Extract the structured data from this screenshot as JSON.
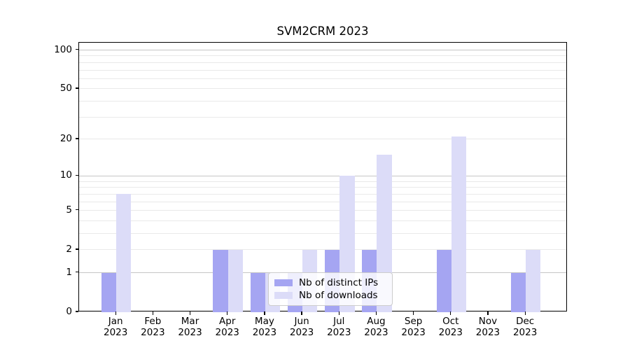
{
  "chart_data": {
    "type": "bar",
    "title": "SVM2CRM 2023",
    "categories": [
      "Jan 2023",
      "Feb 2023",
      "Mar 2023",
      "Apr 2023",
      "May 2023",
      "Jun 2023",
      "Jul 2023",
      "Aug 2023",
      "Sep 2023",
      "Oct 2023",
      "Nov 2023",
      "Dec 2023"
    ],
    "series": [
      {
        "name": "Nb of distinct IPs",
        "color": "#a5a5f2",
        "values": [
          1,
          0,
          0,
          2,
          1,
          1,
          2,
          2,
          0,
          2,
          0,
          1
        ]
      },
      {
        "name": "Nb of downloads",
        "color": "#dcdcf8",
        "values": [
          7,
          0,
          0,
          2,
          1,
          2,
          10,
          15,
          0,
          21,
          0,
          2
        ]
      }
    ],
    "yscale": "log1p",
    "ytick_values": [
      0,
      1,
      2,
      5,
      10,
      20,
      50,
      100
    ],
    "ytick_labels": [
      "0",
      "1",
      "2",
      "5",
      "10",
      "20",
      "50",
      "100"
    ],
    "ylim": [
      0,
      114
    ],
    "grid": "horizontal major+minor",
    "legend_position": "lower center inside plot"
  },
  "colors": {
    "bar_distinct_ips": "#a5a5f2",
    "bar_downloads": "#dcdcf8",
    "grid_major": "#c6c6c6",
    "grid_minor": "#e9e9e9",
    "axis": "#000000",
    "background": "#ffffff",
    "legend_border": "#cccccc"
  }
}
